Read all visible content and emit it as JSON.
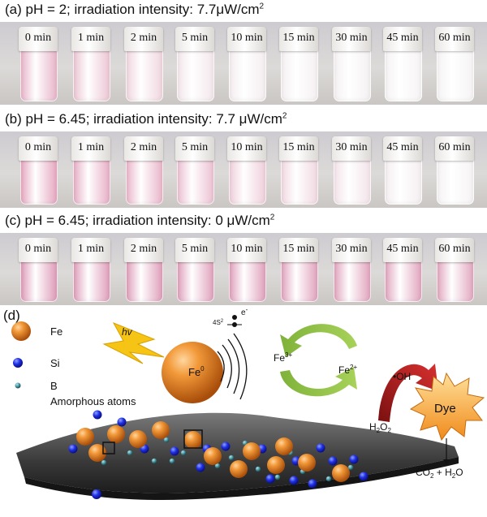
{
  "panels": [
    {
      "label": "(a) pH = 2; irradiation intensity: 7.7μW/cm",
      "sup": "2",
      "times": [
        "0 min",
        "1 min",
        "2 min",
        "5 min",
        "10 min",
        "15 min",
        "30 min",
        "45 min",
        "60 min"
      ],
      "colors": [
        "#e7b5c9",
        "#ecc6d4",
        "#f0d6df",
        "#f3e7ec",
        "#f4edf0",
        "#f5f0f2",
        "#f5f1f3",
        "#f6f3f4",
        "#f6f4f5"
      ]
    },
    {
      "label": "(b) pH = 6.45; irradiation intensity: 7.7 μW/cm",
      "sup": "2",
      "times": [
        "0 min",
        "1 min",
        "2 min",
        "5 min",
        "10 min",
        "15 min",
        "30 min",
        "45 min",
        "60 min"
      ],
      "colors": [
        "#e5a8c0",
        "#e7afc6",
        "#e9b6ca",
        "#ecc1d2",
        "#efcfdb",
        "#f1d9e2",
        "#f3e4ea",
        "#f5eef1",
        "#f6f3f4"
      ]
    },
    {
      "label": "(c) pH = 6.45; irradiation intensity: 0 μW/cm",
      "sup": "2",
      "times": [
        "0 min",
        "1 min",
        "2 min",
        "5 min",
        "10 min",
        "15 min",
        "30 min",
        "45 min",
        "60 min"
      ],
      "colors": [
        "#de9cb8",
        "#df9fba",
        "#df9fba",
        "#e0a2bc",
        "#e0a2bc",
        "#e1a4bd",
        "#e1a5bd",
        "#e1a6be",
        "#e2a8bf"
      ]
    }
  ],
  "diagram": {
    "panel_label": "(d)",
    "legend": [
      {
        "name": "Fe",
        "color": "#e87a1c"
      },
      {
        "name": "Si",
        "color": "#1f2fe6"
      },
      {
        "name": "B",
        "color": "#3f8f9a"
      }
    ],
    "amorphous_label": "Amorphous atoms",
    "hv": "hv",
    "fe0_main": "Fe",
    "fe0_sup": "0",
    "electron": "e",
    "electron_sup": "-",
    "orbital_main": "4S",
    "orbital_sup": "2",
    "fe3_main": "Fe",
    "fe3_sup": "3+",
    "fe2_main": "Fe",
    "fe2_sup": "2+",
    "oh": "•OH",
    "h2o2_a": "H",
    "h2o2_b": "O",
    "h2o2_sub": "2",
    "dye": "Dye",
    "products": "CO",
    "products_sub1": "2",
    "products_mid": " + H",
    "products_sub2": "2",
    "products_end": "O"
  }
}
